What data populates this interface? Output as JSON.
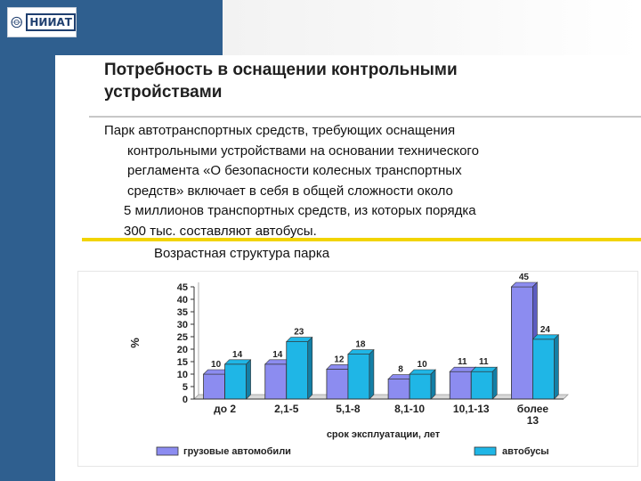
{
  "logo": {
    "text": "НИИАТ"
  },
  "slide": {
    "title_line1": "Потребность в оснащении контрольными",
    "title_line2": "устройствами",
    "body_lines": [
      "Парк автотранспортных средств, требующих оснащения",
      "контрольными устройствами на основании технического",
      "регламента «О безопасности колесных транспортных",
      "средств» включает в себя в общей сложности около",
      "5 миллионов транспортных средств, из которых порядка",
      "300 тыс. составляют автобусы."
    ],
    "chart_caption": "Возрастная структура парка"
  },
  "colors": {
    "sidebar": "#2f5f8f",
    "trucks": "#8c8cf0",
    "buses": "#1fb6e6",
    "accent_line": "#f2d400"
  },
  "chart_data": {
    "type": "bar",
    "categories": [
      "до 2",
      "2,1-5",
      "5,1-8",
      "8,1-10",
      "10,1-13",
      "более 13"
    ],
    "series": [
      {
        "name": "грузовые автомобили",
        "values": [
          10,
          14,
          12,
          8,
          11,
          45
        ]
      },
      {
        "name": "автобусы",
        "values": [
          14,
          23,
          18,
          10,
          11,
          24
        ]
      }
    ],
    "ylabel": "%",
    "xlabel": "срок эксплуатации, лет",
    "ylim": [
      0,
      45
    ],
    "yticks": [
      0,
      5,
      10,
      15,
      20,
      25,
      30,
      35,
      40,
      45
    ],
    "legend": "bottom"
  }
}
